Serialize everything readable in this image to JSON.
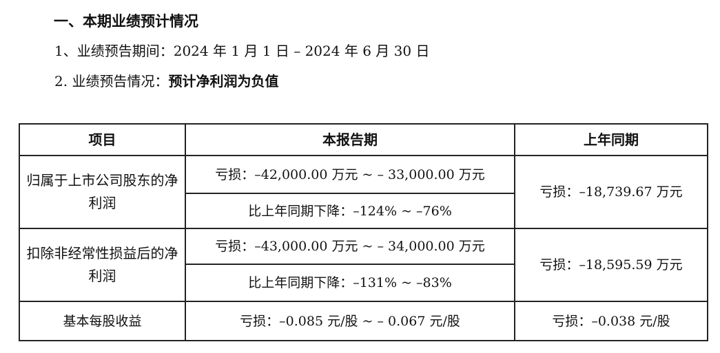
{
  "section": {
    "title": "一、本期业绩预计情况"
  },
  "period": {
    "label": "1、业绩预告期间：",
    "value": "2024 年 1 月 1 日 – 2024 年 6 月 30 日"
  },
  "forecast": {
    "label": "2. 业绩预告情况：",
    "value": "预计净利润为负值"
  },
  "table": {
    "headers": {
      "item": "项目",
      "current": "本报告期",
      "prior": "上年同期"
    },
    "rows": [
      {
        "item": "归属于上市公司股东的净利润",
        "current_amount": "亏损：–42,000.00 万元 ~ – 33,000.00 万元",
        "current_change": "比上年同期下降：–124% ~ –76%",
        "prior": "亏损：–18,739.67 万元"
      },
      {
        "item": "扣除非经常性损益后的净利润",
        "current_amount": "亏损：–43,000.00 万元 ~ – 34,000.00 万元",
        "current_change": "比上年同期下降：–131% ~ –83%",
        "prior": "亏损：–18,595.59 万元"
      },
      {
        "item": "基本每股收益",
        "current_amount": "亏损：–0.085 元/股 ~ – 0.067 元/股",
        "prior": "亏损：–0.038 元/股"
      }
    ]
  }
}
